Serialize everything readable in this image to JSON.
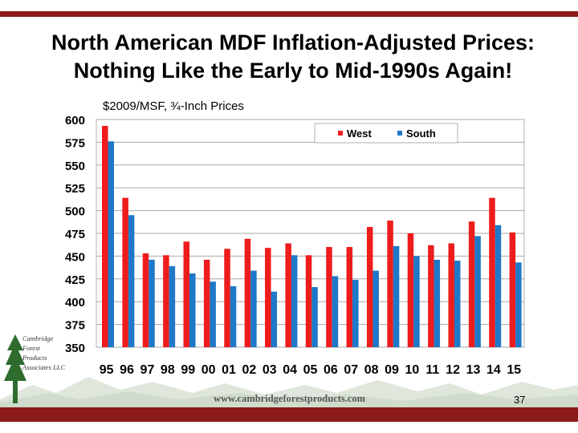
{
  "slide": {
    "title_line1": "North American MDF Inflation-Adjusted Prices:",
    "title_line2": "Nothing Like the Early to Mid-1990s Again!",
    "website": "www.cambridgeforestproducts.com",
    "page_number": "37",
    "logo_lines": [
      "Cambridge",
      "Forest",
      "Products",
      "Associates LLC"
    ]
  },
  "colors": {
    "bar": "#8b1a1a",
    "west": "#ee1c1c",
    "south": "#1f78c8"
  },
  "chart_data": {
    "type": "bar",
    "ylabel": "$2009/MSF, ¾-Inch Prices",
    "categories": [
      "95",
      "96",
      "97",
      "98",
      "99",
      "00",
      "01",
      "02",
      "03",
      "04",
      "05",
      "06",
      "07",
      "08",
      "09",
      "10",
      "11",
      "12",
      "13",
      "14",
      "15"
    ],
    "series": [
      {
        "name": "West",
        "values": [
          593,
          514,
          453,
          451,
          466,
          446,
          458,
          469,
          459,
          464,
          451,
          460,
          460,
          482,
          489,
          475,
          462,
          464,
          488,
          514,
          476
        ]
      },
      {
        "name": "South",
        "values": [
          576,
          495,
          446,
          439,
          431,
          422,
          417,
          434,
          411,
          451,
          416,
          428,
          424,
          434,
          461,
          450,
          446,
          445,
          472,
          484,
          443
        ]
      }
    ],
    "ylim": [
      350,
      600
    ],
    "yticks": [
      350,
      375,
      400,
      425,
      450,
      475,
      500,
      525,
      550,
      575,
      600
    ],
    "legend": "top-right",
    "grid": true
  }
}
